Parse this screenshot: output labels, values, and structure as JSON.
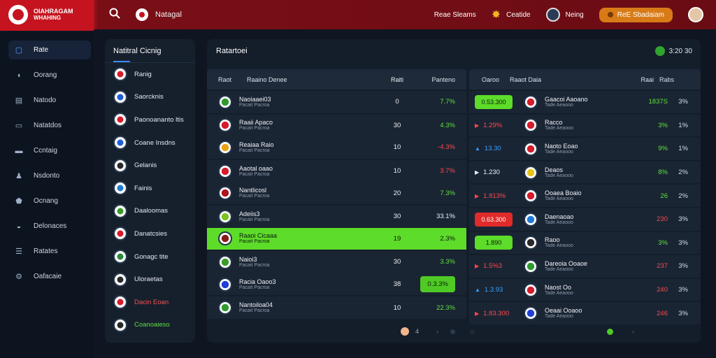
{
  "brand": {
    "line1": "OIAHRAGAM",
    "line2": "WHAHING"
  },
  "topbar": {
    "section_label": "Natagal",
    "items": [
      {
        "label": "Reae Sleams"
      },
      {
        "label": "Ceatide"
      },
      {
        "label": "Neing"
      }
    ],
    "cta_label": "ReE Sbadaiam"
  },
  "sidebar": {
    "items": [
      {
        "label": "Rate",
        "icon": "chat-icon"
      },
      {
        "label": "Oorang",
        "icon": "shield-icon"
      },
      {
        "label": "Natodo",
        "icon": "grid-icon"
      },
      {
        "label": "Natatdos",
        "icon": "ticket-icon"
      },
      {
        "label": "Ccntaig",
        "icon": "card-icon"
      },
      {
        "label": "Nsdonto",
        "icon": "people-icon"
      },
      {
        "label": "Ocnang",
        "icon": "badge-icon"
      },
      {
        "label": "Delonaces",
        "icon": "chat-bubble-icon"
      },
      {
        "label": "Ratates",
        "icon": "list-icon"
      },
      {
        "label": "Oafacaie",
        "icon": "gear-icon"
      }
    ]
  },
  "list_panel": {
    "title": "Natitral Cicnig",
    "items": [
      {
        "label": "Ranig",
        "style": ""
      },
      {
        "label": "Saorcknis",
        "style": ""
      },
      {
        "label": "Paonoananto ltis",
        "style": ""
      },
      {
        "label": "Coane Insdns",
        "style": ""
      },
      {
        "label": "Gelanis",
        "style": ""
      },
      {
        "label": "Fainis",
        "style": ""
      },
      {
        "label": "Daaloomas",
        "style": ""
      },
      {
        "label": "Danatcsies",
        "style": ""
      },
      {
        "label": "Gonagc tite",
        "style": ""
      },
      {
        "label": "Uloraetas",
        "style": ""
      },
      {
        "label": "Dacin Eoan",
        "style": "red"
      },
      {
        "label": "Coanoaieso",
        "style": "green"
      }
    ]
  },
  "main": {
    "title": "Ratartoei",
    "status": "3:20 30",
    "left_table": {
      "headers": [
        "Raot",
        "Raaino Denee",
        "Raiti",
        "Panteno"
      ],
      "rows": [
        {
          "name": "Naoiaaei03",
          "sub": "Pacait Pacroa",
          "num": "0",
          "pct": "7.7%",
          "color": "green",
          "highlight": false
        },
        {
          "name": "Raaii Apaco",
          "sub": "Pacait Pacroa",
          "num": "30",
          "pct": "4.3%",
          "color": "green",
          "highlight": false
        },
        {
          "name": "Reaiaa Raio",
          "sub": "Pacait Pacroa",
          "num": "10",
          "pct": "-4.3%",
          "color": "red",
          "highlight": false
        },
        {
          "name": "Aaotal oaao",
          "sub": "Pacait Pacroa",
          "num": "10",
          "pct": "3.7%",
          "color": "red",
          "highlight": false
        },
        {
          "name": "Nantlicosl",
          "sub": "Pacait Pacroa",
          "num": "20",
          "pct": "7.3%",
          "color": "green",
          "highlight": false
        },
        {
          "name": "Adeiis3",
          "sub": "Pacait Pacroa",
          "num": "30",
          "pct": "33.1%",
          "color": "white",
          "highlight": false
        },
        {
          "name": "Raaoi Cicaaa",
          "sub": "Pacait Pacroa",
          "num": "19",
          "pct": "2.3%",
          "color": "white",
          "highlight": true
        },
        {
          "name": "Naioi3",
          "sub": "Pacait Pacroa",
          "num": "30",
          "pct": "3.3%",
          "color": "green",
          "highlight": false
        },
        {
          "name": "Racia Oaoo3",
          "sub": "Pacait Pacroa",
          "num": "38",
          "pct": "0.3.3%",
          "color": "white",
          "highlight": false,
          "pill": true
        },
        {
          "name": "Nantoiloa04",
          "sub": "Pacait Pacroa",
          "num": "10",
          "pct": "22.3%",
          "color": "green",
          "highlight": false
        }
      ]
    },
    "right_table": {
      "headers": [
        "Oaroo",
        "Raaot Daia",
        "Raai",
        "Rabs"
      ],
      "rows": [
        {
          "odds": "0.53.300",
          "odds_style": "green-pill",
          "name": "Gaacoi Aaoano",
          "sub": "Tade Aeaooo",
          "val": "1837S",
          "val_color": "green",
          "pct": "3%"
        },
        {
          "odds": "1.29%",
          "odds_style": "red",
          "name": "Racco",
          "sub": "Tade Aeaooo",
          "val": "3%",
          "val_color": "green",
          "pct": "1%"
        },
        {
          "odds": "13.30",
          "odds_style": "blue",
          "name": "Naoto Eoao",
          "sub": "Tade Aeaooo",
          "val": "9%",
          "val_color": "green",
          "pct": "1%"
        },
        {
          "odds": "1.230",
          "odds_style": "white",
          "name": "Deaos",
          "sub": "Tade Aeaooo",
          "val": "8%",
          "val_color": "green",
          "pct": "2%"
        },
        {
          "odds": "1.813%",
          "odds_style": "red",
          "name": "Ooaea Boaio",
          "sub": "Tade Aeaooo",
          "val": "26",
          "val_color": "green",
          "pct": "2%"
        },
        {
          "odds": "0.63.300",
          "odds_style": "red-pill",
          "name": "Daenaoao",
          "sub": "Tade Aeaooo",
          "val": "230",
          "val_color": "red",
          "pct": "3%"
        },
        {
          "odds": "1.890",
          "odds_style": "green-pill",
          "name": "Raoo",
          "sub": "Tade Aeaooo",
          "val": "3%",
          "val_color": "green",
          "pct": "3%"
        },
        {
          "odds": "1.5%3",
          "odds_style": "red",
          "name": "Dareoia Ooaoe",
          "sub": "Tade Aeaooo",
          "val": "237",
          "val_color": "red",
          "pct": "3%"
        },
        {
          "odds": "1.3.93",
          "odds_style": "blue",
          "name": "Naost Oo",
          "sub": "Tade Aeaooo",
          "val": "240",
          "val_color": "red",
          "pct": "3%"
        },
        {
          "odds": "1.83.300",
          "odds_style": "red",
          "name": "Oeaai Ooaoo",
          "sub": "Tade Aeaooo",
          "val": "246",
          "val_color": "red",
          "pct": "3%"
        }
      ]
    },
    "pager": {
      "page": "4"
    }
  },
  "colors": {
    "accent_red": "#c5141f",
    "up_green": "#5ddc2a",
    "down_red": "#ff4848",
    "cta_orange": "#d87b17"
  }
}
